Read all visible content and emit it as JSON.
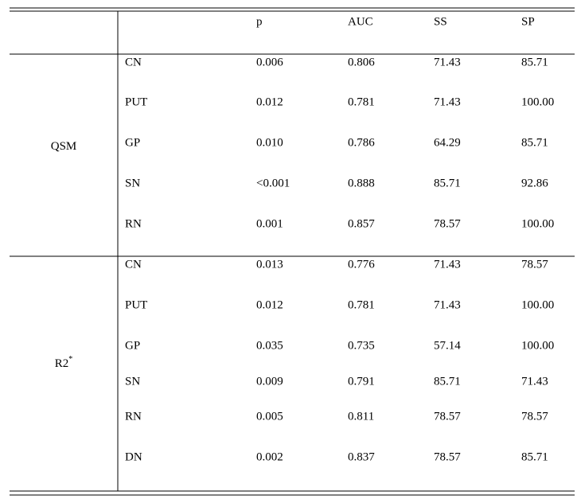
{
  "table": {
    "columns": [
      "p",
      "AUC",
      "SS",
      "SP"
    ],
    "groups": [
      {
        "label": "QSM",
        "rows": [
          [
            "CN",
            "0.006",
            "0.806",
            "71.43",
            "85.71"
          ],
          [
            "PUT",
            "0.012",
            "0.781",
            "71.43",
            "100.00"
          ],
          [
            "GP",
            "0.010",
            "0.786",
            "64.29",
            "85.71"
          ],
          [
            "SN",
            "<0.001",
            "0.888",
            "85.71",
            "92.86"
          ],
          [
            "RN",
            "0.001",
            "0.857",
            "78.57",
            "100.00"
          ]
        ]
      },
      {
        "label": "R2",
        "superscript": "*",
        "rows": [
          [
            "CN",
            "0.013",
            "0.776",
            "71.43",
            "78.57"
          ],
          [
            "PUT",
            "0.012",
            "0.781",
            "71.43",
            "100.00"
          ],
          [
            "GP",
            "0.035",
            "0.735",
            "57.14",
            "100.00"
          ],
          [
            "SN",
            "0.009",
            "0.791",
            "85.71",
            "71.43"
          ],
          [
            "RN",
            "0.005",
            "0.811",
            "78.57",
            "78.57"
          ],
          [
            "DN",
            "0.002",
            "0.837",
            "78.57",
            "85.71"
          ]
        ]
      }
    ]
  }
}
